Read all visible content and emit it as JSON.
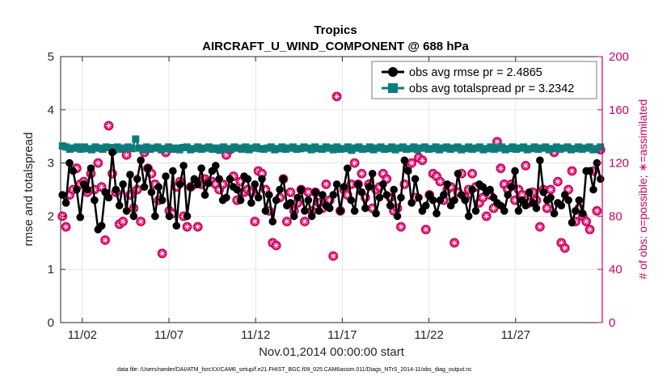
{
  "chart_data": {
    "type": "line",
    "title": "Tropics",
    "subtitle": "AIRCRAFT_U_WIND_COMPONENT @ 688 hPa",
    "xlabel": "Nov.01,2014 00:00:00 start",
    "ylabel": "rmse and totalspread",
    "ylabel_right": "# of obs: o=possible; ∗=assimilated",
    "footnote": "data file: /Users/raeder/DAI/ATM_forcXX/CAM6_setup/f.e21.FHIST_BGC.f09_025.CAM6assim.011/Diags_NTrS_2014-11/obs_diag_output.nc",
    "xlim": [
      0,
      31.25
    ],
    "ylim": [
      0,
      5
    ],
    "ylim_right": [
      0,
      200
    ],
    "x_ticks": [
      1.25,
      6.25,
      11.25,
      16.25,
      21.25,
      26.25
    ],
    "x_tick_labels": [
      "11/02",
      "11/07",
      "11/12",
      "11/17",
      "11/22",
      "11/27"
    ],
    "y_ticks": [
      0,
      1,
      2,
      3,
      4,
      5
    ],
    "y_ticks_right": [
      0,
      40,
      80,
      120,
      160,
      200
    ],
    "grid": true,
    "legend_position": "top-right",
    "colors": {
      "rmse": "#000000",
      "spread": "#0e7b7b",
      "obs": "#d10060"
    },
    "series": [
      {
        "name": "obs avg rmse pr = 2.4865",
        "axis": "left",
        "values": [
          2.4,
          2.25,
          3.0,
          2.85,
          2.5,
          1.98,
          2.6,
          2.5,
          2.9,
          2.3,
          1.75,
          1.82,
          2.45,
          2.35,
          3.2,
          2.5,
          2.2,
          2.6,
          2.1,
          2.78,
          2.0,
          2.7,
          3.05,
          2.55,
          2.9,
          2.45,
          2.0,
          2.55,
          2.3,
          2.75,
          2.0,
          2.85,
          1.82,
          2.6,
          2.95,
          2.0,
          2.55,
          2.7,
          2.6,
          2.9,
          2.4,
          2.62,
          2.85,
          2.95,
          2.7,
          2.3,
          2.35,
          2.7,
          2.55,
          2.5,
          2.3,
          2.75,
          2.7,
          2.25,
          2.6,
          2.35,
          2.7,
          2.1,
          2.4,
          1.9,
          2.3,
          2.5,
          2.7,
          2.2,
          2.25,
          2.0,
          2.35,
          2.5,
          2.1,
          2.3,
          2.0,
          2.45,
          2.1,
          2.4,
          2.2,
          2.15,
          2.4,
          2.6,
          2.1,
          2.55,
          2.9,
          2.3,
          2.1,
          2.6,
          2.45,
          2.15,
          2.55,
          2.8,
          2.05,
          2.35,
          2.6,
          2.4,
          2.2,
          2.5,
          2.0,
          2.35,
          3.05,
          2.85,
          2.25,
          2.7,
          2.35,
          2.1,
          2.2,
          2.4,
          2.3,
          2.05,
          2.3,
          2.4,
          2.6,
          2.2,
          2.3,
          2.8,
          2.4,
          2.3,
          2.0,
          2.5,
          2.1,
          2.6,
          2.55,
          2.45,
          2.5,
          2.35,
          2.25,
          2.2,
          2.1,
          2.4,
          2.55,
          2.85,
          2.1,
          2.3,
          2.2,
          2.45,
          2.25,
          2.15,
          3.05,
          2.45,
          2.3,
          2.35,
          2.05,
          2.25,
          2.2,
          2.4,
          2.3,
          1.88,
          2.1,
          2.3,
          2.05,
          2.85,
          2.85,
          2.5,
          3.0,
          2.7
        ]
      },
      {
        "name": "obs avg totalspread pr = 3.2342",
        "axis": "left",
        "values": [
          3.32,
          3.3,
          3.26,
          3.28,
          3.3,
          3.26,
          3.3,
          3.27,
          3.25,
          3.3,
          3.28,
          3.26,
          3.3,
          3.29,
          3.24,
          3.3,
          3.26,
          3.28,
          3.3,
          3.27,
          3.45,
          3.28,
          3.25,
          3.3,
          3.26,
          3.28,
          3.3,
          3.25,
          3.27,
          3.3,
          3.26,
          3.28,
          3.25,
          3.29,
          3.3,
          3.25,
          3.27,
          3.3,
          3.26,
          3.28,
          3.3,
          3.26,
          3.28,
          3.24,
          3.3,
          3.27,
          3.26,
          3.3,
          3.28,
          3.26,
          3.3,
          3.25,
          3.28,
          3.3,
          3.27,
          3.26,
          3.28,
          3.3,
          3.25,
          3.27,
          3.3,
          3.26,
          3.28,
          3.3,
          3.26,
          3.27,
          3.3,
          3.28,
          3.25,
          3.3,
          3.27,
          3.26,
          3.3,
          3.28,
          3.25,
          3.3,
          3.26,
          3.27,
          3.3,
          3.24,
          3.28,
          3.3,
          3.26,
          3.27,
          3.3,
          3.25,
          3.28,
          3.3,
          3.26,
          3.27,
          3.3,
          3.25,
          3.28,
          3.3,
          3.26,
          3.27,
          3.3,
          3.25,
          3.28,
          3.3,
          3.26,
          3.27,
          3.3,
          3.25,
          3.28,
          3.3,
          3.26,
          3.28,
          3.3,
          3.25,
          3.27,
          3.3,
          3.26,
          3.28,
          3.3,
          3.25,
          3.27,
          3.3,
          3.26,
          3.28,
          3.3,
          3.25,
          3.27,
          3.3,
          3.26,
          3.28,
          3.3,
          3.25,
          3.27,
          3.3,
          3.26,
          3.28,
          3.3,
          3.25,
          3.27,
          3.3,
          3.26,
          3.28,
          3.3,
          3.25,
          3.27,
          3.3,
          3.26,
          3.28,
          3.3,
          3.25,
          3.27,
          3.3
        ]
      },
      {
        "name": "# of obs possible",
        "axis": "right",
        "values": [
          80,
          72,
          96,
          100,
          116,
          104,
          106,
          98,
          112,
          100,
          120,
          102,
          62,
          148,
          112,
          98,
          74,
          76,
          126,
          96,
          86,
          100,
          76,
          128,
          116,
          112,
          104,
          92,
          52,
          128,
          84,
          82,
          102,
          106,
          80,
          72,
          102,
          104,
          72,
          104,
          108,
          106,
          106,
          104,
          100,
          104,
          126,
          130,
          110,
          92,
          106,
          98,
          100,
          98,
          76,
          114,
          112,
          100,
          84,
          60,
          58,
          94,
          108,
          76,
          98,
          84,
          90,
          100,
          76,
          98,
          84,
          98,
          90,
          86,
          104,
          92,
          50,
          170,
          84,
          100,
          96,
          104,
          120,
          104,
          112,
          94,
          104,
          86,
          100,
          102,
          112,
          108,
          94,
          84,
          86,
          72,
          104,
          118,
          120,
          94,
          124,
          122,
          70,
          96,
          112,
          110,
          106,
          92,
          100,
          102,
          60,
          98,
          112,
          94,
          100,
          112,
          102,
          90,
          94,
          80,
          96,
          86,
          136,
          116,
          104,
          100,
          104,
          92,
          100,
          96,
          118,
          90,
          98,
          92,
          72,
          100,
          86,
          100,
          128,
          106,
          60,
          56,
          100,
          114,
          76,
          86,
          80,
          76,
          70,
          114,
          84,
          130
        ]
      }
    ]
  }
}
